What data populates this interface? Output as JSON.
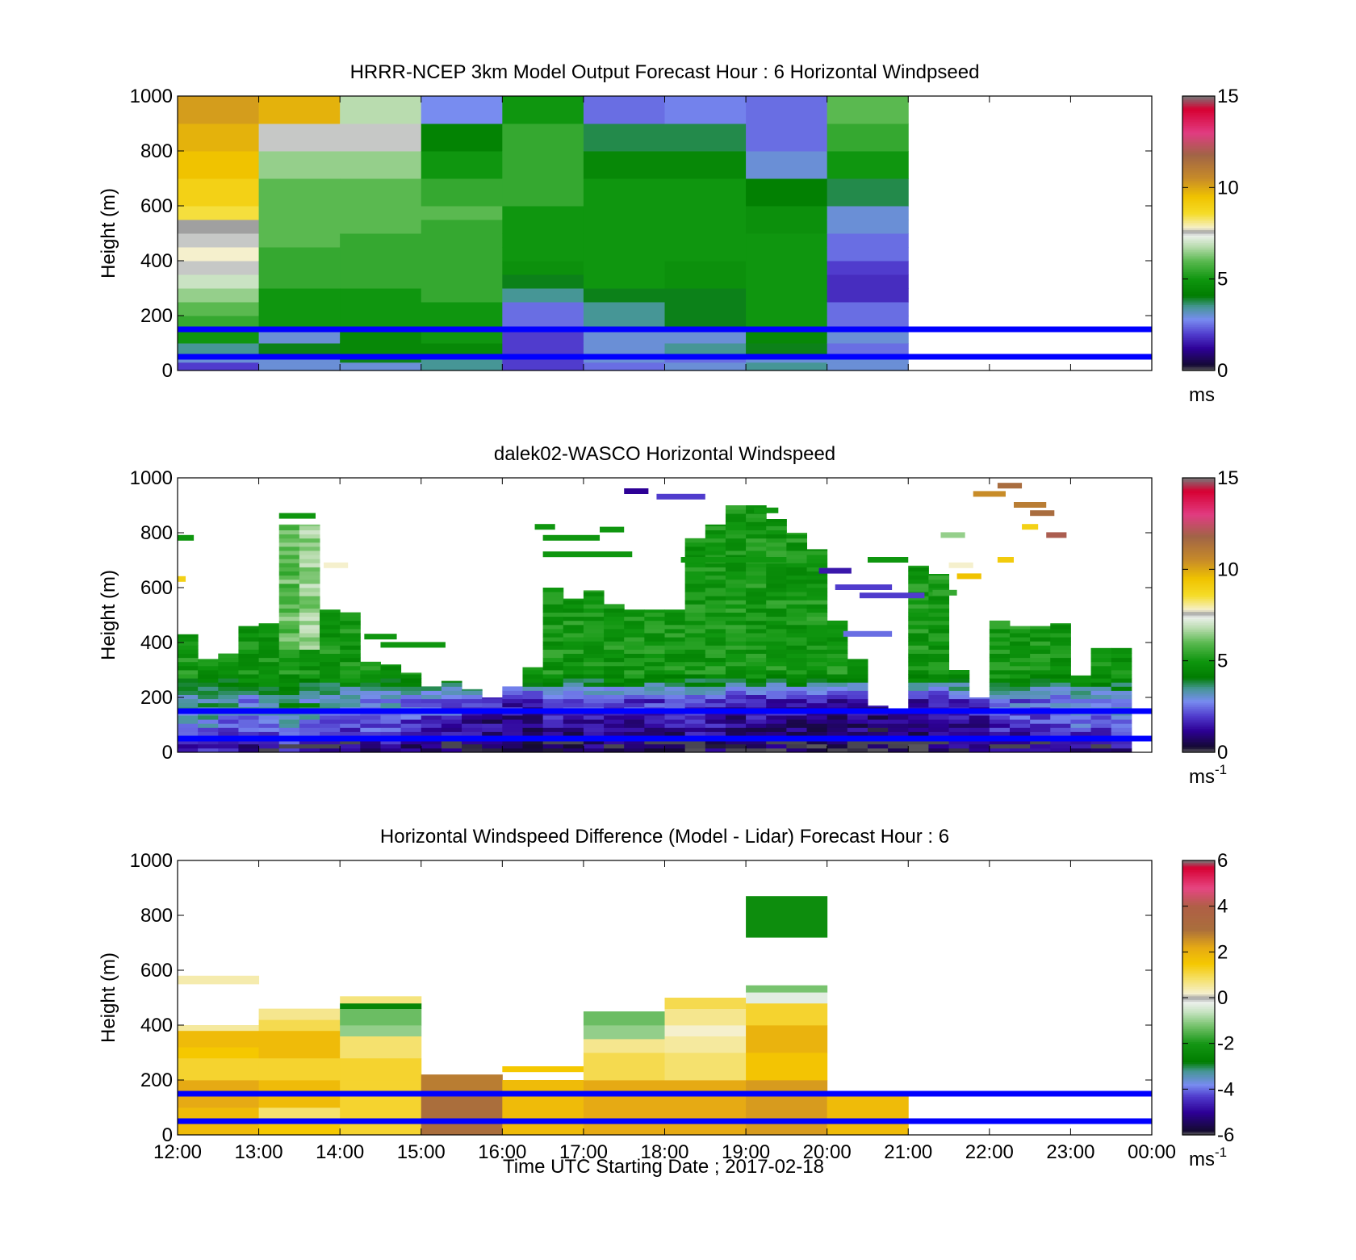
{
  "figure": {
    "xlabel": "Time UTC  Starting Date ; 2017-02-18",
    "x_ticks": [
      "12:00",
      "13:00",
      "14:00",
      "15:00",
      "16:00",
      "17:00",
      "18:00",
      "19:00",
      "20:00",
      "21:00",
      "22:00",
      "23:00",
      "00:00"
    ]
  },
  "chart_data": [
    {
      "type": "heatmap",
      "title": "HRRR-NCEP 3km Model Output   Forecast Hour : 6 Horizontal Windpseed",
      "ylabel": "Height (m)",
      "ylim": [
        0,
        1000
      ],
      "y_ticks": [
        "0",
        "200",
        "400",
        "600",
        "800",
        "1000"
      ],
      "colorbar": {
        "range": [
          0,
          15
        ],
        "ticks": [
          "0",
          "5",
          "10",
          "15"
        ],
        "unit": "ms",
        "unit_sup": ""
      },
      "reference_lines_m": [
        150,
        50
      ],
      "x_hours": [
        12,
        13,
        14,
        15,
        16,
        17,
        18,
        19,
        20
      ],
      "levels_m": [
        0,
        30,
        60,
        100,
        150,
        200,
        250,
        300,
        350,
        400,
        450,
        500,
        550,
        600,
        700,
        800,
        900,
        1000
      ],
      "values": [
        [
          2.0,
          3.0,
          3.0,
          3.5,
          2.0,
          2.5,
          3.0,
          3.5,
          3.0
        ],
        [
          3.0,
          3.0,
          4.0,
          3.5,
          2.0,
          3.0,
          2.5,
          3.0,
          3.0
        ],
        [
          3.5,
          4.0,
          4.5,
          4.5,
          2.0,
          3.0,
          3.5,
          4.0,
          2.5
        ],
        [
          5.0,
          3.0,
          4.5,
          5.0,
          2.0,
          3.0,
          3.0,
          4.5,
          3.0
        ],
        [
          5.5,
          5.0,
          5.0,
          5.0,
          2.5,
          3.5,
          4.0,
          5.0,
          2.5
        ],
        [
          6.0,
          5.0,
          5.0,
          5.0,
          2.5,
          3.5,
          4.0,
          5.0,
          2.5
        ],
        [
          6.5,
          5.0,
          5.0,
          5.5,
          3.5,
          4.0,
          4.0,
          5.0,
          1.8
        ],
        [
          7.0,
          5.5,
          5.5,
          5.5,
          4.0,
          5.0,
          4.8,
          5.0,
          1.8
        ],
        [
          7.5,
          5.5,
          5.5,
          5.5,
          4.8,
          5.0,
          4.8,
          5.0,
          2.0
        ],
        [
          7.8,
          5.5,
          5.5,
          5.5,
          5.0,
          5.0,
          5.0,
          5.0,
          2.5
        ],
        [
          7.5,
          6.0,
          5.5,
          5.5,
          5.0,
          5.0,
          5.0,
          5.0,
          2.5
        ],
        [
          7.6,
          6.0,
          6.0,
          5.5,
          5.0,
          5.0,
          5.0,
          4.8,
          3.0
        ],
        [
          8.5,
          6.0,
          6.0,
          6.0,
          5.0,
          5.0,
          5.0,
          4.8,
          3.0
        ],
        [
          9.0,
          6.0,
          6.0,
          5.5,
          5.5,
          5.0,
          5.0,
          4.2,
          3.8
        ],
        [
          9.5,
          6.5,
          6.5,
          5.0,
          5.5,
          4.5,
          4.5,
          3.0,
          5.0
        ],
        [
          9.8,
          7.5,
          7.5,
          4.3,
          5.5,
          3.8,
          3.8,
          2.5,
          5.5
        ],
        [
          10.2,
          9.8,
          6.8,
          2.8,
          5.0,
          2.5,
          2.7,
          2.5,
          6.0
        ]
      ]
    },
    {
      "type": "heatmap",
      "title": "dalek02-WASCO  Horizontal Windspeed",
      "ylabel": "Height (m)",
      "ylim": [
        0,
        1000
      ],
      "y_ticks": [
        "0",
        "200",
        "400",
        "600",
        "800",
        "1000"
      ],
      "colorbar": {
        "range": [
          0,
          15
        ],
        "ticks": [
          "0",
          "5",
          "10",
          "15"
        ],
        "unit": "ms",
        "unit_sup": "-1"
      },
      "reference_lines_m": [
        150,
        50
      ],
      "time_range_h": [
        12,
        24
      ],
      "columns_per_hour": 4,
      "profiles": [
        {
          "t": 12.0,
          "top": 430,
          "base": 3.0
        },
        {
          "t": 12.25,
          "top": 340,
          "base": 3.0
        },
        {
          "t": 12.5,
          "top": 360,
          "base": 2.5
        },
        {
          "t": 12.75,
          "top": 460,
          "base": 2.5
        },
        {
          "t": 13.0,
          "top": 470,
          "base": 3.0
        },
        {
          "t": 13.25,
          "top": 830,
          "base": 3.0,
          "hi": 6.0
        },
        {
          "t": 13.5,
          "top": 830,
          "base": 3.0,
          "hi": 6.5
        },
        {
          "t": 13.75,
          "top": 520,
          "base": 2.5
        },
        {
          "t": 14.0,
          "top": 510,
          "base": 2.5
        },
        {
          "t": 14.25,
          "top": 330,
          "base": 2.5
        },
        {
          "t": 14.5,
          "top": 320,
          "base": 2.5
        },
        {
          "t": 14.75,
          "top": 290,
          "base": 2.0
        },
        {
          "t": 15.0,
          "top": 240,
          "base": 2.0
        },
        {
          "t": 15.25,
          "top": 260,
          "base": 2.0
        },
        {
          "t": 15.5,
          "top": 230,
          "base": 1.5
        },
        {
          "t": 15.75,
          "top": 200,
          "base": 1.2
        },
        {
          "t": 16.0,
          "top": 240,
          "base": 1.2
        },
        {
          "t": 16.25,
          "top": 310,
          "base": 1.2
        },
        {
          "t": 16.5,
          "top": 600,
          "base": 1.5
        },
        {
          "t": 16.75,
          "top": 560,
          "base": 1.5
        },
        {
          "t": 17.0,
          "top": 590,
          "base": 1.5
        },
        {
          "t": 17.25,
          "top": 540,
          "base": 1.5
        },
        {
          "t": 17.5,
          "top": 520,
          "base": 1.5
        },
        {
          "t": 17.75,
          "top": 520,
          "base": 1.5
        },
        {
          "t": 18.0,
          "top": 520,
          "base": 1.5
        },
        {
          "t": 18.25,
          "top": 780,
          "base": 1.5
        },
        {
          "t": 18.5,
          "top": 830,
          "base": 1.5
        },
        {
          "t": 18.75,
          "top": 900,
          "base": 1.2
        },
        {
          "t": 19.0,
          "top": 900,
          "base": 1.2
        },
        {
          "t": 19.25,
          "top": 850,
          "base": 1.2
        },
        {
          "t": 19.5,
          "top": 800,
          "base": 1.2
        },
        {
          "t": 19.75,
          "top": 740,
          "base": 1.2
        },
        {
          "t": 20.0,
          "top": 480,
          "base": 1.0
        },
        {
          "t": 20.25,
          "top": 340,
          "base": 1.0
        },
        {
          "t": 20.5,
          "top": 170,
          "base": 1.0
        },
        {
          "t": 20.75,
          "top": 160,
          "base": 1.0
        },
        {
          "t": 21.0,
          "top": 680,
          "base": 1.2
        },
        {
          "t": 21.25,
          "top": 650,
          "base": 1.2
        },
        {
          "t": 21.5,
          "top": 300,
          "base": 1.5
        },
        {
          "t": 21.75,
          "top": 200,
          "base": 1.5
        },
        {
          "t": 22.0,
          "top": 480,
          "base": 2.0
        },
        {
          "t": 22.25,
          "top": 460,
          "base": 2.0
        },
        {
          "t": 22.5,
          "top": 460,
          "base": 2.0
        },
        {
          "t": 22.75,
          "top": 470,
          "base": 2.0
        },
        {
          "t": 23.0,
          "top": 280,
          "base": 2.5
        },
        {
          "t": 23.25,
          "top": 380,
          "base": 2.5
        },
        {
          "t": 23.5,
          "top": 380,
          "base": 2.5
        },
        {
          "t": 23.75,
          "top": 0,
          "base": 2.5
        }
      ],
      "streaks": [
        {
          "t0": 12.0,
          "t1": 12.2,
          "h": 780,
          "v": 5.0
        },
        {
          "t0": 12.0,
          "t1": 12.1,
          "h": 630,
          "v": 9.0
        },
        {
          "t0": 13.25,
          "t1": 13.7,
          "h": 860,
          "v": 5.0
        },
        {
          "t0": 13.8,
          "t1": 14.1,
          "h": 680,
          "v": 7.8
        },
        {
          "t0": 14.3,
          "t1": 14.7,
          "h": 420,
          "v": 5.0
        },
        {
          "t0": 14.5,
          "t1": 15.3,
          "h": 390,
          "v": 5.0
        },
        {
          "t0": 16.4,
          "t1": 16.65,
          "h": 820,
          "v": 5.0
        },
        {
          "t0": 16.5,
          "t1": 17.2,
          "h": 780,
          "v": 5.0
        },
        {
          "t0": 16.5,
          "t1": 17.6,
          "h": 720,
          "v": 5.0
        },
        {
          "t0": 17.2,
          "t1": 17.5,
          "h": 810,
          "v": 5.0
        },
        {
          "t0": 17.5,
          "t1": 17.8,
          "h": 950,
          "v": 1.2
        },
        {
          "t0": 17.9,
          "t1": 18.5,
          "h": 930,
          "v": 2.0
        },
        {
          "t0": 18.2,
          "t1": 19.5,
          "h": 700,
          "v": 5.0
        },
        {
          "t0": 19.1,
          "t1": 19.4,
          "h": 880,
          "v": 5.0
        },
        {
          "t0": 19.9,
          "t1": 20.3,
          "h": 660,
          "v": 1.5
        },
        {
          "t0": 20.1,
          "t1": 20.8,
          "h": 600,
          "v": 2.0
        },
        {
          "t0": 20.2,
          "t1": 20.8,
          "h": 430,
          "v": 2.5
        },
        {
          "t0": 20.4,
          "t1": 21.2,
          "h": 570,
          "v": 2.0
        },
        {
          "t0": 20.5,
          "t1": 21.0,
          "h": 700,
          "v": 5.0
        },
        {
          "t0": 21.3,
          "t1": 21.6,
          "h": 580,
          "v": 5.5
        },
        {
          "t0": 21.4,
          "t1": 21.7,
          "h": 790,
          "v": 6.5
        },
        {
          "t0": 21.5,
          "t1": 21.8,
          "h": 680,
          "v": 7.8
        },
        {
          "t0": 21.6,
          "t1": 21.9,
          "h": 640,
          "v": 9.5
        },
        {
          "t0": 21.8,
          "t1": 22.2,
          "h": 940,
          "v": 10.5
        },
        {
          "t0": 22.1,
          "t1": 22.4,
          "h": 970,
          "v": 11.5
        },
        {
          "t0": 22.3,
          "t1": 22.7,
          "h": 900,
          "v": 11.0
        },
        {
          "t0": 22.4,
          "t1": 22.6,
          "h": 820,
          "v": 9.0
        },
        {
          "t0": 22.5,
          "t1": 22.8,
          "h": 870,
          "v": 11.5
        },
        {
          "t0": 22.7,
          "t1": 22.95,
          "h": 790,
          "v": 12.0
        },
        {
          "t0": 22.1,
          "t1": 22.3,
          "h": 700,
          "v": 9.2
        }
      ]
    },
    {
      "type": "heatmap",
      "title": "Horizontal Windspeed Difference (Model - Lidar) Forecast Hour : 6",
      "ylabel": "Height (m)",
      "ylim": [
        0,
        1000
      ],
      "y_ticks": [
        "0",
        "200",
        "400",
        "600",
        "800",
        "1000"
      ],
      "colorbar": {
        "range": [
          -6,
          6
        ],
        "ticks": [
          "-6",
          "-4",
          "-2",
          "0",
          "2",
          "4",
          "6"
        ],
        "unit": "ms",
        "unit_sup": "-1"
      },
      "reference_lines_m": [
        150,
        50
      ],
      "blocks": [
        {
          "h": 12,
          "bands": [
            [
              0,
              100,
              1.8
            ],
            [
              100,
              200,
              2.2
            ],
            [
              200,
              280,
              1.2
            ],
            [
              280,
              320,
              1.5
            ],
            [
              320,
              380,
              1.8
            ],
            [
              380,
              400,
              0.5
            ],
            [
              550,
              580,
              0.4
            ]
          ]
        },
        {
          "h": 13,
          "bands": [
            [
              0,
              40,
              1.5
            ],
            [
              40,
              100,
              0.8
            ],
            [
              100,
              200,
              1.8
            ],
            [
              200,
              280,
              1.2
            ],
            [
              280,
              380,
              1.8
            ],
            [
              380,
              420,
              1.0
            ],
            [
              420,
              460,
              0.6
            ]
          ]
        },
        {
          "h": 14,
          "bands": [
            [
              0,
              200,
              1.2
            ],
            [
              200,
              280,
              1.2
            ],
            [
              280,
              360,
              0.8
            ],
            [
              360,
              400,
              -1.0
            ],
            [
              400,
              460,
              -1.3
            ],
            [
              460,
              480,
              -2.5
            ],
            [
              480,
              505,
              0.7
            ]
          ]
        },
        {
          "h": 15,
          "bands": [
            [
              0,
              140,
              3.0
            ],
            [
              140,
              220,
              2.8
            ]
          ]
        },
        {
          "h": 16,
          "bands": [
            [
              0,
              200,
              1.8
            ],
            [
              230,
              250,
              1.5
            ]
          ]
        },
        {
          "h": 17,
          "bands": [
            [
              0,
              200,
              2.2
            ],
            [
              200,
              300,
              1.0
            ],
            [
              300,
              350,
              0.6
            ],
            [
              350,
              400,
              -1.0
            ],
            [
              400,
              450,
              -1.3
            ]
          ]
        },
        {
          "h": 18,
          "bands": [
            [
              0,
              200,
              2.2
            ],
            [
              200,
              300,
              0.8
            ],
            [
              300,
              360,
              0.5
            ],
            [
              360,
              400,
              0.2
            ],
            [
              400,
              460,
              0.6
            ],
            [
              460,
              500,
              1.0
            ]
          ]
        },
        {
          "h": 19,
          "bands": [
            [
              0,
              200,
              2.4
            ],
            [
              200,
              300,
              1.6
            ],
            [
              300,
              400,
              2.0
            ],
            [
              400,
              480,
              1.2
            ],
            [
              480,
              520,
              -0.3
            ],
            [
              520,
              545,
              -1.2
            ],
            [
              720,
              870,
              -2.3
            ]
          ]
        },
        {
          "h": 20,
          "bands": [
            [
              0,
              150,
              1.8
            ]
          ]
        }
      ]
    }
  ]
}
